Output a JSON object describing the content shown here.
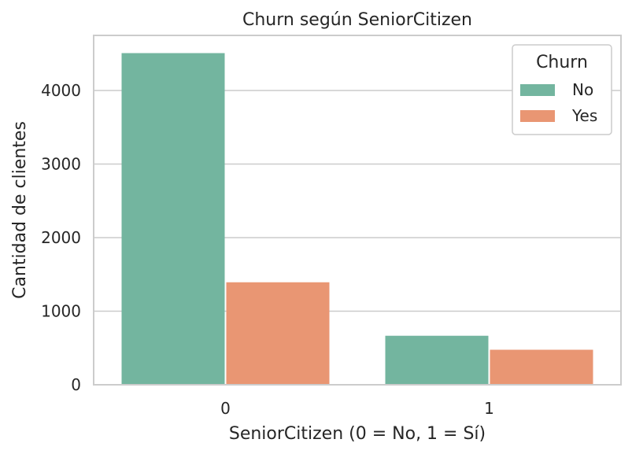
{
  "chart_data": {
    "type": "bar",
    "title": "Churn según SeniorCitizen",
    "xlabel": "SeniorCitizen (0 = No, 1 = Sí)",
    "ylabel": "Cantidad de clientes",
    "categories": [
      "0",
      "1"
    ],
    "series": [
      {
        "name": "No",
        "values": [
          4508,
          666
        ],
        "color": "#73b59f"
      },
      {
        "name": "Yes",
        "values": [
          1393,
          476
        ],
        "color": "#e99673"
      }
    ],
    "ylim": [
      0,
      4500
    ],
    "yticks": [
      0,
      1000,
      2000,
      3000,
      4000
    ],
    "grid": true,
    "legend": {
      "title": "Churn",
      "placement": "top-right"
    }
  }
}
